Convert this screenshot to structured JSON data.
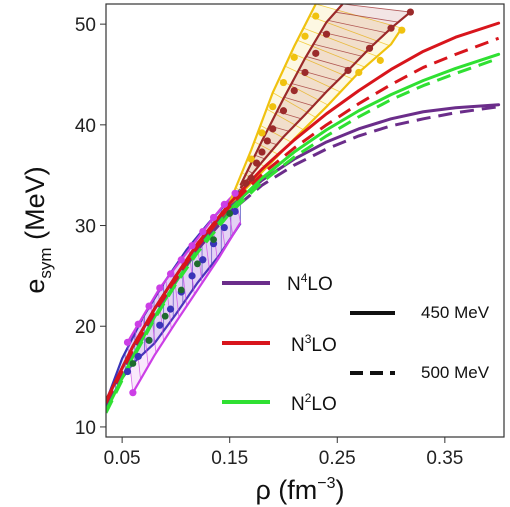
{
  "chart_data": {
    "type": "line",
    "title": "",
    "xlabel": {
      "base": "ρ (fm",
      "exp": "−3",
      "close": ")"
    },
    "ylabel": {
      "base": "e",
      "sub": "sym",
      "rest": " (MeV)"
    },
    "xlim": [
      0.035,
      0.405
    ],
    "ylim": [
      9.0,
      52.0
    ],
    "x_ticks": [
      0.05,
      0.15,
      0.25,
      0.35
    ],
    "x_tick_labels": [
      "0.05",
      "0.15",
      "0.25",
      "0.35"
    ],
    "y_ticks": [
      10,
      20,
      30,
      40,
      50
    ],
    "y_tick_labels": [
      "10",
      "20",
      "30",
      "40",
      "50"
    ],
    "colors": {
      "n4lo": "#6b2d8a",
      "n3lo": "#d8151c",
      "n2lo": "#2fe032",
      "band_blue": "#3a34b8",
      "band_magenta": "#cc3fe6",
      "band_orange": "#f0c20f",
      "band_brown": "#9b2a2a",
      "marker_green": "#1f6b2f"
    },
    "legend": {
      "series": [
        {
          "label": "N",
          "sup": "4",
          "rest": "LO",
          "color_key": "n4lo"
        },
        {
          "label": "N",
          "sup": "3",
          "rest": "LO",
          "color_key": "n3lo"
        },
        {
          "label": "N",
          "sup": "2",
          "rest": "LO",
          "color_key": "n2lo"
        }
      ],
      "styles": [
        {
          "label": "450 MeV",
          "dash": "solid"
        },
        {
          "label": "500 MeV",
          "dash": "dashed"
        }
      ]
    },
    "series": [
      {
        "color_key": "n4lo",
        "style": "solid",
        "x": [
          0.035,
          0.06,
          0.08,
          0.1,
          0.12,
          0.15,
          0.18,
          0.21,
          0.24,
          0.27,
          0.3,
          0.33,
          0.36,
          0.4
        ],
        "values": [
          12.6,
          18.0,
          21.7,
          25.0,
          28.1,
          31.8,
          34.5,
          36.6,
          38.3,
          39.6,
          40.6,
          41.3,
          41.7,
          42.0
        ]
      },
      {
        "color_key": "n4lo",
        "style": "dashed",
        "x": [
          0.035,
          0.06,
          0.08,
          0.1,
          0.12,
          0.15,
          0.18,
          0.21,
          0.24,
          0.27,
          0.3,
          0.33,
          0.36,
          0.4
        ],
        "values": [
          12.3,
          17.6,
          21.3,
          24.6,
          27.6,
          31.3,
          34.0,
          36.0,
          37.6,
          38.9,
          39.9,
          40.6,
          41.2,
          41.8
        ]
      },
      {
        "color_key": "n3lo",
        "style": "solid",
        "x": [
          0.035,
          0.06,
          0.08,
          0.1,
          0.12,
          0.15,
          0.18,
          0.21,
          0.24,
          0.27,
          0.3,
          0.33,
          0.36,
          0.4
        ],
        "values": [
          12.6,
          18.0,
          21.7,
          25.0,
          28.2,
          32.2,
          35.6,
          38.5,
          41.1,
          43.4,
          45.5,
          47.3,
          48.7,
          50.1
        ]
      },
      {
        "color_key": "n3lo",
        "style": "dashed",
        "x": [
          0.035,
          0.06,
          0.08,
          0.1,
          0.12,
          0.15,
          0.18,
          0.21,
          0.24,
          0.27,
          0.3,
          0.33,
          0.36,
          0.4
        ],
        "values": [
          12.4,
          17.7,
          21.4,
          24.7,
          27.9,
          31.9,
          35.1,
          37.7,
          40.0,
          42.1,
          44.0,
          45.7,
          47.0,
          48.6
        ]
      },
      {
        "color_key": "n2lo",
        "style": "solid",
        "x": [
          0.035,
          0.06,
          0.08,
          0.1,
          0.12,
          0.15,
          0.18,
          0.21,
          0.24,
          0.27,
          0.3,
          0.33,
          0.36,
          0.4
        ],
        "values": [
          11.6,
          17.0,
          20.9,
          24.4,
          27.6,
          31.6,
          34.7,
          37.3,
          39.5,
          41.4,
          43.0,
          44.4,
          45.6,
          47.0
        ]
      },
      {
        "color_key": "n2lo",
        "style": "dashed",
        "x": [
          0.035,
          0.06,
          0.08,
          0.1,
          0.12,
          0.15,
          0.18,
          0.21,
          0.24,
          0.27,
          0.3,
          0.33,
          0.36,
          0.4
        ],
        "values": [
          11.4,
          16.8,
          20.7,
          24.2,
          27.3,
          31.2,
          34.3,
          36.8,
          38.9,
          40.8,
          42.5,
          43.9,
          45.1,
          46.6
        ]
      }
    ],
    "bands": [
      {
        "name_key": "blue-band",
        "color_key": "band_blue",
        "upper": {
          "x": [
            0.035,
            0.05,
            0.07,
            0.09,
            0.11,
            0.13,
            0.15,
            0.16
          ],
          "y": [
            12.5,
            16.8,
            21.0,
            24.5,
            27.6,
            30.2,
            32.6,
            33.6
          ]
        },
        "lower": {
          "x": [
            0.035,
            0.05,
            0.06,
            0.08,
            0.1,
            0.12,
            0.14,
            0.16
          ],
          "y": [
            12.0,
            14.8,
            16.3,
            18.3,
            21.2,
            24.3,
            27.0,
            30.2
          ]
        },
        "markers": {
          "x": [
            0.055,
            0.065,
            0.075,
            0.085,
            0.095,
            0.105,
            0.115,
            0.125,
            0.135,
            0.145,
            0.155
          ],
          "y": [
            15.5,
            17.0,
            18.6,
            20.1,
            21.7,
            23.4,
            25.0,
            26.6,
            28.2,
            29.8,
            31.4
          ]
        }
      },
      {
        "name_key": "magenta-band",
        "color_key": "band_magenta",
        "upper": {
          "x": [
            0.055,
            0.065,
            0.075,
            0.085,
            0.095,
            0.105,
            0.115,
            0.125,
            0.135,
            0.145,
            0.155
          ],
          "y": [
            18.4,
            20.2,
            22.0,
            23.8,
            25.2,
            26.6,
            28.0,
            29.4,
            30.8,
            32.1,
            33.2
          ]
        },
        "lower": {
          "x": [
            0.06,
            0.08,
            0.1,
            0.12,
            0.14,
            0.16
          ],
          "y": [
            13.4,
            17.1,
            20.4,
            23.6,
            26.8,
            30.3
          ]
        },
        "markers": {
          "x": [
            0.055,
            0.065,
            0.075,
            0.085,
            0.095,
            0.105,
            0.115,
            0.125,
            0.135,
            0.145,
            0.155,
            0.06
          ],
          "y": [
            18.4,
            20.2,
            22.0,
            23.8,
            25.2,
            26.6,
            28.0,
            29.4,
            30.8,
            32.1,
            33.2,
            13.4
          ]
        }
      },
      {
        "name_key": "orange-band",
        "color_key": "band_orange",
        "upper": {
          "x": [
            0.15,
            0.17,
            0.19,
            0.21,
            0.23
          ],
          "y": [
            32.3,
            37.5,
            43.2,
            47.8,
            52.0
          ]
        },
        "lower": {
          "x": [
            0.15,
            0.18,
            0.21,
            0.24,
            0.27,
            0.3,
            0.31
          ],
          "y": [
            32.0,
            35.3,
            38.6,
            41.8,
            45.2,
            48.0,
            49.6
          ]
        },
        "markers": {
          "x": [
            0.17,
            0.18,
            0.19,
            0.2,
            0.21,
            0.22,
            0.23,
            0.27,
            0.29,
            0.31
          ],
          "y": [
            36.6,
            39.2,
            41.8,
            44.2,
            46.7,
            48.8,
            50.8,
            45.2,
            46.4,
            49.4
          ]
        }
      },
      {
        "name_key": "brown-band",
        "color_key": "band_brown",
        "upper": {
          "x": [
            0.16,
            0.18,
            0.2,
            0.22,
            0.24,
            0.255
          ],
          "y": [
            34.0,
            38.4,
            42.6,
            46.6,
            50.2,
            52.0
          ]
        },
        "lower": {
          "x": [
            0.16,
            0.18,
            0.2,
            0.22,
            0.24,
            0.26,
            0.28,
            0.3,
            0.318
          ],
          "y": [
            33.7,
            36.3,
            38.8,
            41.0,
            43.3,
            45.4,
            47.6,
            49.6,
            51.2
          ]
        },
        "markers": {
          "x": [
            0.165,
            0.17,
            0.175,
            0.18,
            0.185,
            0.19,
            0.2,
            0.21,
            0.22,
            0.23,
            0.24,
            0.26,
            0.28,
            0.3,
            0.318
          ],
          "y": [
            34.2,
            34.7,
            36.2,
            37.3,
            38.4,
            39.6,
            41.4,
            43.4,
            45.2,
            47.1,
            49.0,
            45.4,
            47.6,
            49.6,
            51.2
          ]
        }
      }
    ],
    "green_markers": {
      "x": [
        0.06,
        0.075,
        0.09,
        0.105,
        0.12,
        0.135,
        0.15
      ],
      "y": [
        16.3,
        18.6,
        21.0,
        23.6,
        26.2,
        28.6,
        31.2
      ]
    }
  }
}
